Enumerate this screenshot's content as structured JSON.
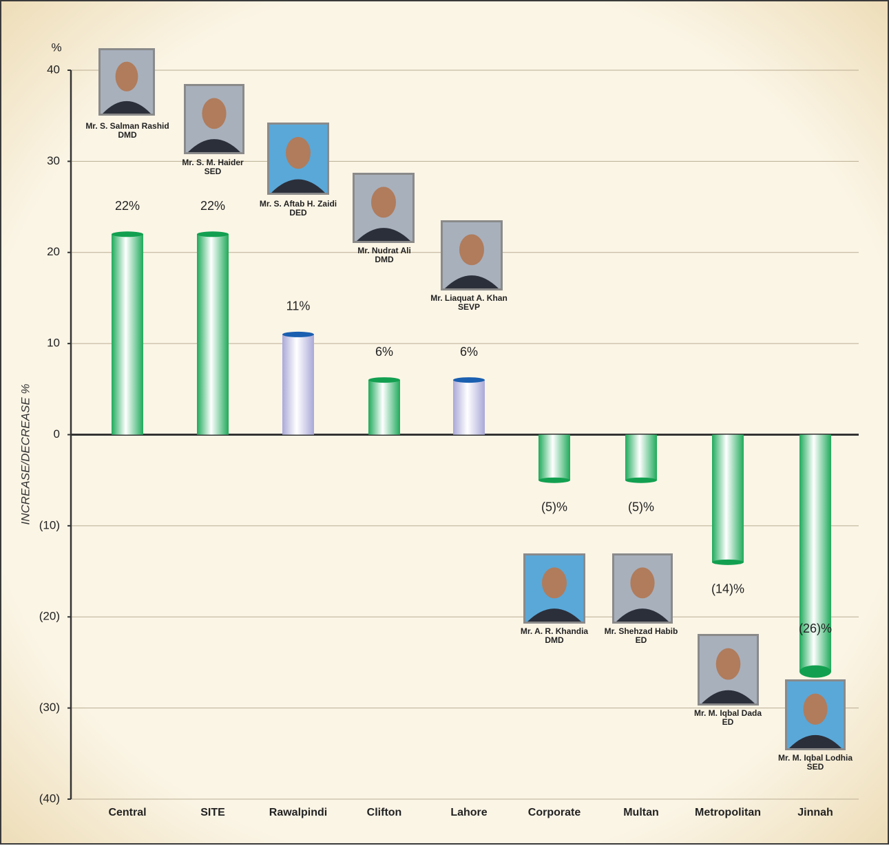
{
  "chart_data": {
    "type": "bar",
    "y_label": "INCREASE/DECREASE %",
    "y_unit": "%",
    "categories": [
      "Central",
      "SITE",
      "Rawalpindi",
      "Clifton",
      "Lahore",
      "Corporate",
      "Multan",
      "Metropolitan",
      "Jinnah"
    ],
    "values": [
      22,
      22,
      11,
      6,
      6,
      -5,
      -5,
      -14,
      -26
    ],
    "value_labels": [
      "22%",
      "22%",
      "11%",
      "6%",
      "6%",
      "(5)%",
      "(5)%",
      "(14)%",
      "(26)%"
    ],
    "colors": [
      "#1faa5a",
      "#1faa5a",
      "#a9a8d8",
      "#1faa5a",
      "#a9a8d8",
      "#1faa5a",
      "#1faa5a",
      "#1faa5a",
      "#1faa5a"
    ],
    "ylim": [
      -40,
      40
    ],
    "yticks": [
      {
        "value": -40,
        "label": "(40)"
      },
      {
        "value": -30,
        "label": "(30)"
      },
      {
        "value": -20,
        "label": "(20)"
      },
      {
        "value": -10,
        "label": "(10)"
      },
      0,
      10,
      20,
      30,
      40
    ],
    "grid": true,
    "annotations": [
      {
        "name": "Mr. S. Salman Rashid",
        "title": "DMD"
      },
      {
        "name": "Mr. S. M. Haider",
        "title": "SED"
      },
      {
        "name": "Mr. S. Aftab H. Zaidi",
        "title": "DED"
      },
      {
        "name": "Mr. Nudrat Ali",
        "title": "DMD"
      },
      {
        "name": "Mr. Liaquat A. Khan",
        "title": "SEVP"
      },
      {
        "name": "Mr. A. R. Khandia",
        "title": "DMD"
      },
      {
        "name": "Mr. Shehzad Habib",
        "title": "ED"
      },
      {
        "name": "Mr. M. Iqbal Dada",
        "title": "ED"
      },
      {
        "name": "Mr. M. Iqbal Lodhia",
        "title": "SED"
      }
    ]
  }
}
